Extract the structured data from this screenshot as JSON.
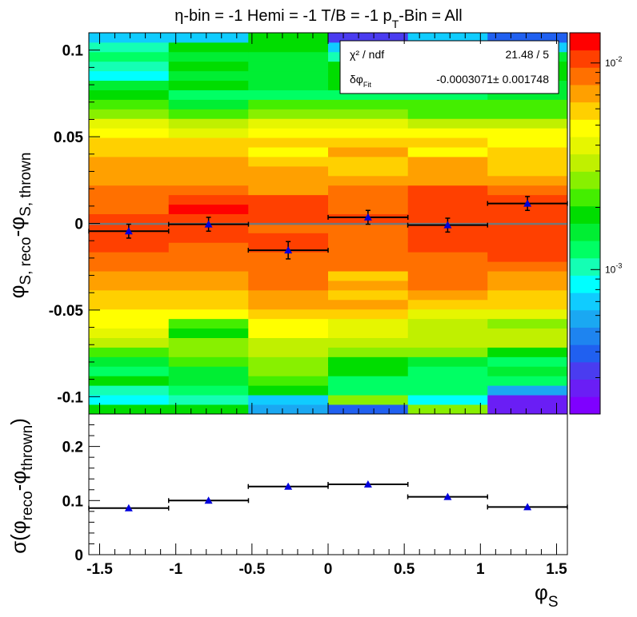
{
  "title": "η-bin = -1 Hemi = -1 T/B = -1 p_T-Bin = All",
  "title_parts": {
    "a": "η-bin = -1 Hemi = -1 T/B = -1 p",
    "sub": "T",
    "b": "-Bin = All"
  },
  "stats_box": {
    "chi2_label": "χ² / ndf",
    "chi2_value": "21.48 / 5",
    "fit_label_main": "δφ",
    "fit_label_sub": "Fit",
    "fit_value": "-0.0003071± 0.001748"
  },
  "upper_y_title": {
    "p1": "φ",
    "s1": "S, reco",
    "p2": "-φ",
    "s2": "S, thrown"
  },
  "lower_y_title": {
    "p1": "σ(φ",
    "s1": "reco",
    "p2": "-φ",
    "s2": "thrown",
    "p3": ")"
  },
  "x_title": {
    "main": "φ",
    "sub": "S"
  },
  "palette_labels": [
    {
      "base": "10",
      "exp": "-2",
      "value": 0.01
    },
    {
      "base": "10",
      "exp": "-3",
      "value": 0.001
    }
  ],
  "colors": {
    "frame": "#000000",
    "fit_line": "#777777",
    "marker": "#0000dd"
  },
  "chart_data": [
    {
      "type": "heatmap",
      "title": "η-bin = -1 Hemi = -1 T/B = -1 p_T-Bin = All",
      "xlabel": "φ_S",
      "ylabel": "φ_S, reco - φ_S, thrown",
      "xlim": [
        -1.571,
        1.571
      ],
      "ylim": [
        -0.11,
        0.11
      ],
      "x_ticks": [
        -1.5,
        -1,
        -0.5,
        0,
        0.5,
        1,
        1.5
      ],
      "y_ticks": [
        -0.1,
        -0.05,
        0,
        0.05,
        0.1
      ],
      "y_tick_labels": [
        "-0.1",
        "-0.05",
        "0",
        "0.05",
        "0.1"
      ],
      "x_bin_edges": [
        -1.571,
        -1.047,
        -0.524,
        0,
        0.524,
        1.047,
        1.571
      ],
      "y_bins": 40,
      "z_scale": "log",
      "z_range": [
        0.0002,
        0.014
      ],
      "color_index_rows_bottom_to_top": [
        [
          11,
          11,
          5,
          3,
          13,
          1
        ],
        [
          7,
          8,
          6,
          13,
          7,
          1
        ],
        [
          8,
          9,
          11,
          9,
          9,
          5
        ],
        [
          11,
          10,
          12,
          9,
          9,
          9
        ],
        [
          9,
          10,
          13,
          11,
          9,
          10
        ],
        [
          10,
          12,
          13,
          11,
          10,
          9
        ],
        [
          12,
          13,
          14,
          13,
          13,
          11
        ],
        [
          14,
          13,
          14,
          14,
          14,
          14
        ],
        [
          15,
          11,
          16,
          15,
          14,
          14
        ],
        [
          16,
          12,
          16,
          15,
          14,
          13
        ],
        [
          16,
          16,
          17,
          17,
          15,
          15
        ],
        [
          17,
          17,
          18,
          18,
          17,
          17
        ],
        [
          17,
          17,
          18,
          17,
          18,
          17
        ],
        [
          18,
          18,
          19,
          18,
          19,
          18
        ],
        [
          18,
          18,
          19,
          17,
          19,
          18
        ],
        [
          19,
          19,
          19,
          19,
          19,
          19
        ],
        [
          19,
          19,
          19,
          19,
          19,
          20
        ],
        [
          20,
          19,
          20,
          19,
          20,
          20
        ],
        [
          20,
          20,
          20,
          19,
          20,
          20
        ],
        [
          20,
          20,
          19,
          19,
          20,
          20
        ],
        [
          20,
          20,
          20,
          20,
          20,
          20
        ],
        [
          19,
          21,
          20,
          19,
          20,
          20
        ],
        [
          19,
          20,
          20,
          19,
          20,
          20
        ],
        [
          19,
          19,
          18,
          19,
          20,
          19
        ],
        [
          18,
          18,
          18,
          18,
          18,
          18
        ],
        [
          18,
          18,
          18,
          17,
          18,
          17
        ],
        [
          18,
          18,
          17,
          17,
          18,
          17
        ],
        [
          17,
          17,
          16,
          18,
          16,
          17
        ],
        [
          17,
          17,
          17,
          17,
          17,
          16
        ],
        [
          16,
          15,
          16,
          16,
          16,
          16
        ],
        [
          15,
          14,
          15,
          15,
          14,
          14
        ],
        [
          13,
          12,
          13,
          13,
          12,
          12
        ],
        [
          12,
          10,
          12,
          12,
          12,
          12
        ],
        [
          11,
          9,
          9,
          9,
          9,
          10
        ],
        [
          10,
          11,
          10,
          11,
          11,
          10
        ],
        [
          7,
          10,
          10,
          11,
          11,
          11
        ],
        [
          8,
          11,
          10,
          11,
          11,
          11
        ],
        [
          9,
          10,
          10,
          8,
          10,
          10
        ],
        [
          8,
          11,
          11,
          6,
          11,
          6
        ],
        [
          6,
          6,
          11,
          2,
          6,
          3
        ]
      ],
      "series": [
        {
          "x": [
            -1.309,
            -0.785,
            -0.262,
            0.262,
            0.785,
            1.309
          ],
          "x_err": [
            0.262,
            0.262,
            0.262,
            0.262,
            0.262,
            0.262
          ],
          "y": [
            -0.0045,
            -0.0005,
            -0.0155,
            0.0035,
            -0.001,
            0.0115
          ],
          "y_err": [
            0.004,
            0.004,
            0.005,
            0.004,
            0.004,
            0.004
          ]
        }
      ],
      "fit": {
        "type": "constant",
        "value": -0.0003071,
        "error": 0.001748,
        "chi2": 21.48,
        "ndf": 5
      }
    },
    {
      "type": "scatter",
      "xlabel": "φ_S",
      "ylabel": "σ(φ_reco - φ_thrown)",
      "xlim": [
        -1.571,
        1.571
      ],
      "ylim": [
        0,
        0.26
      ],
      "x_ticks": [
        -1.5,
        -1,
        -0.5,
        0,
        0.5,
        1,
        1.5
      ],
      "x_tick_labels": [
        "-1.5",
        "-1",
        "-0.5",
        "0",
        "0.5",
        "1",
        "1.5"
      ],
      "y_ticks": [
        0,
        0.1,
        0.2
      ],
      "y_tick_labels": [
        "0",
        "0.1",
        "0.2"
      ],
      "series": [
        {
          "x": [
            -1.309,
            -0.785,
            -0.262,
            0.262,
            0.785,
            1.309
          ],
          "x_err": [
            0.262,
            0.262,
            0.262,
            0.262,
            0.262,
            0.262
          ],
          "y": [
            0.086,
            0.1,
            0.126,
            0.13,
            0.107,
            0.088
          ]
        }
      ]
    }
  ]
}
